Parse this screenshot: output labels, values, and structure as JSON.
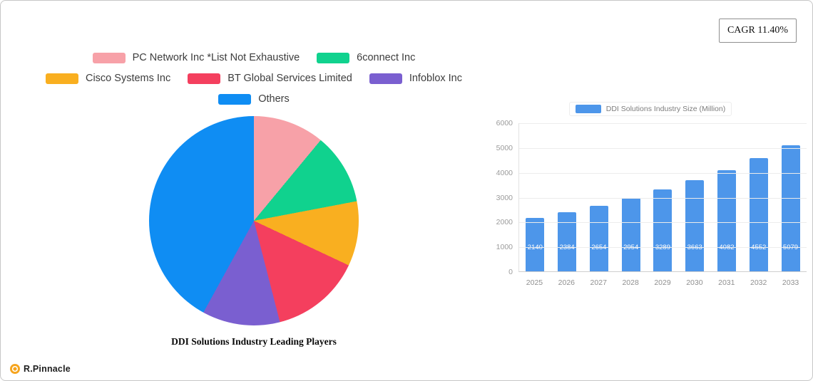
{
  "cagr_badge": "CAGR 11.40%",
  "footer": {
    "brand": "R.Pinnacle"
  },
  "chart_data": [
    {
      "type": "pie",
      "title": "DDI Solutions Industry Leading Players",
      "labels": [
        "PC Network Inc *List Not Exhaustive",
        "6connect Inc",
        "Cisco Systems Inc",
        "BT Global Services Limited",
        "Infoblox Inc",
        "Others"
      ],
      "values": [
        11,
        11,
        10,
        14,
        12,
        42
      ],
      "colors": [
        "#f7a1a8",
        "#10d28e",
        "#f9af20",
        "#f43f5e",
        "#7a5fd0",
        "#0f8df3"
      ],
      "legend_position": "top",
      "start_angle": "top",
      "direction": "clockwise"
    },
    {
      "type": "bar",
      "series_name": "DDI Solutions Industry Size (Million)",
      "categories": [
        "2025",
        "2026",
        "2027",
        "2028",
        "2029",
        "2030",
        "2031",
        "2032",
        "2033"
      ],
      "values": [
        2140,
        2384,
        2654,
        2954,
        3289,
        3663,
        4082,
        4552,
        5079
      ],
      "ylim": [
        0,
        6000
      ],
      "yticks": [
        0,
        1000,
        2000,
        3000,
        4000,
        5000,
        6000
      ],
      "bar_color": "#4d96ea",
      "grid": true,
      "legend_position": "top",
      "value_labels": "inside-bottom-white"
    }
  ]
}
